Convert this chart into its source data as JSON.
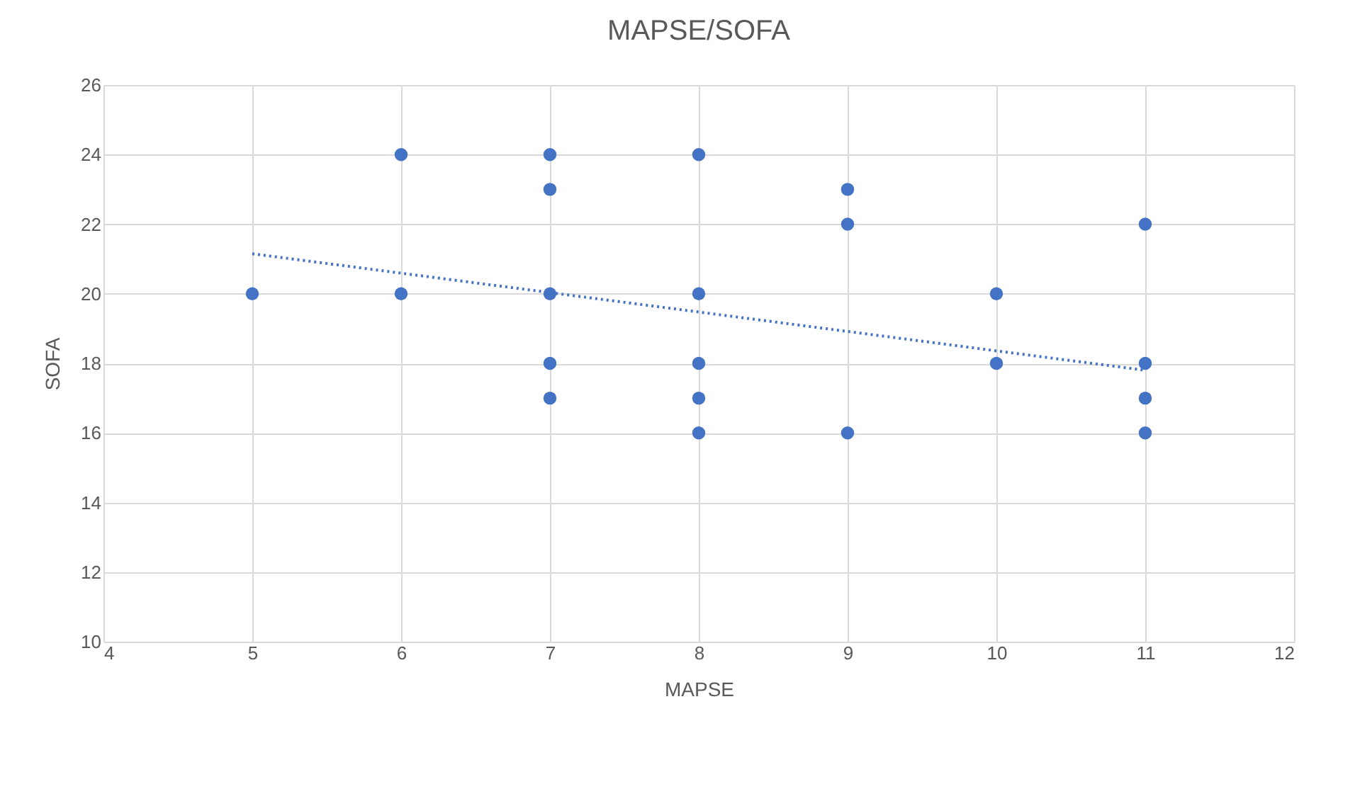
{
  "chart_data": {
    "type": "scatter",
    "title": "MAPSE/SOFA",
    "xlabel": "MAPSE",
    "ylabel": "SOFA",
    "xlim": [
      4,
      12
    ],
    "xticks": [
      4,
      5,
      6,
      7,
      8,
      9,
      10,
      11,
      12
    ],
    "ylim": [
      10,
      26
    ],
    "yticks": [
      10,
      12,
      14,
      16,
      18,
      20,
      22,
      24,
      26
    ],
    "grid": true,
    "series": [
      {
        "marker": "circle",
        "color": "#4472c4",
        "x": [
          5,
          6,
          6,
          7,
          7,
          7,
          7,
          7,
          8,
          8,
          8,
          8,
          8,
          9,
          9,
          9,
          10,
          10,
          11,
          11,
          11,
          11
        ],
        "values": [
          20,
          24,
          20,
          24,
          23,
          20,
          18,
          17,
          24,
          20,
          18,
          17,
          16,
          23,
          22,
          16,
          20,
          18,
          22,
          18,
          17,
          16
        ]
      },
      {
        "type": "line",
        "color": "#4472c4",
        "line_style": "dotted",
        "x": [
          5,
          11
        ],
        "values": [
          21.15,
          17.8
        ]
      }
    ]
  }
}
